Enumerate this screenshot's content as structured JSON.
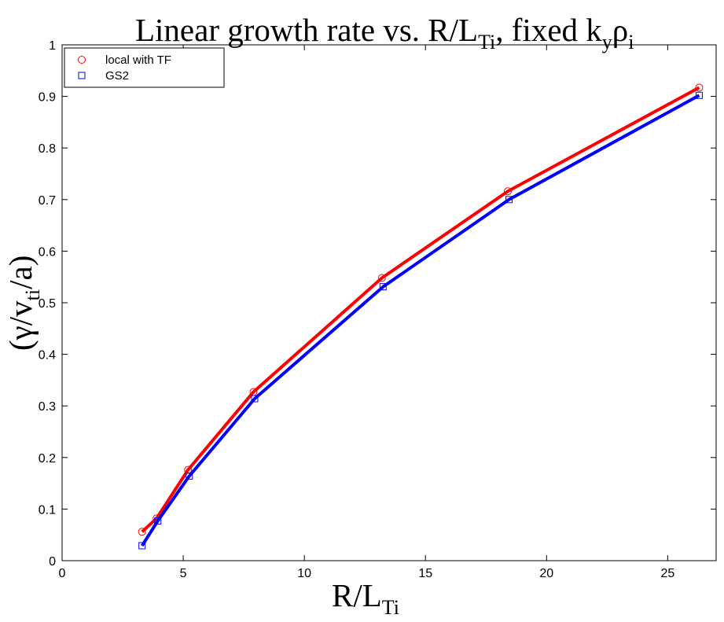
{
  "chart_data": {
    "type": "line",
    "title": {
      "main": "Linear growth rate vs. R/L",
      "main_sub": "Ti",
      "middle": ", fixed k",
      "middle_sub": "y",
      "end": "ρ",
      "end_sub": "i"
    },
    "xlabel": {
      "main": "R/L",
      "sub": "Ti"
    },
    "ylabel": {
      "open": "(γ/v",
      "sub": "ti",
      "close": "/a)"
    },
    "xlim": [
      0,
      27
    ],
    "ylim": [
      0,
      1
    ],
    "xticks": [
      0,
      5,
      10,
      15,
      20,
      25
    ],
    "xtick_labels": [
      "0",
      "5",
      "10",
      "15",
      "20",
      "25"
    ],
    "yticks": [
      0,
      0.1,
      0.2,
      0.3,
      0.4,
      0.5,
      0.6,
      0.7,
      0.8,
      0.9,
      1
    ],
    "ytick_labels": [
      "0",
      "0.1",
      "0.2",
      "0.3",
      "0.4",
      "0.5",
      "0.6",
      "0.7",
      "0.8",
      "0.9",
      "1"
    ],
    "grid": false,
    "legend_position": "top-left",
    "series": [
      {
        "name": "local with TF",
        "color": "#ff0000",
        "marker": "circle",
        "x": [
          3.3,
          3.9,
          5.2,
          7.9,
          13.2,
          18.4,
          26.3
        ],
        "y": [
          0.056,
          0.082,
          0.176,
          0.327,
          0.548,
          0.716,
          0.917
        ]
      },
      {
        "name": "GS2",
        "color": "#0000ff",
        "marker": "square",
        "x": [
          3.3,
          3.95,
          5.25,
          7.95,
          13.25,
          18.45,
          26.3
        ],
        "y": [
          0.029,
          0.077,
          0.164,
          0.314,
          0.531,
          0.7,
          0.902
        ]
      }
    ]
  }
}
